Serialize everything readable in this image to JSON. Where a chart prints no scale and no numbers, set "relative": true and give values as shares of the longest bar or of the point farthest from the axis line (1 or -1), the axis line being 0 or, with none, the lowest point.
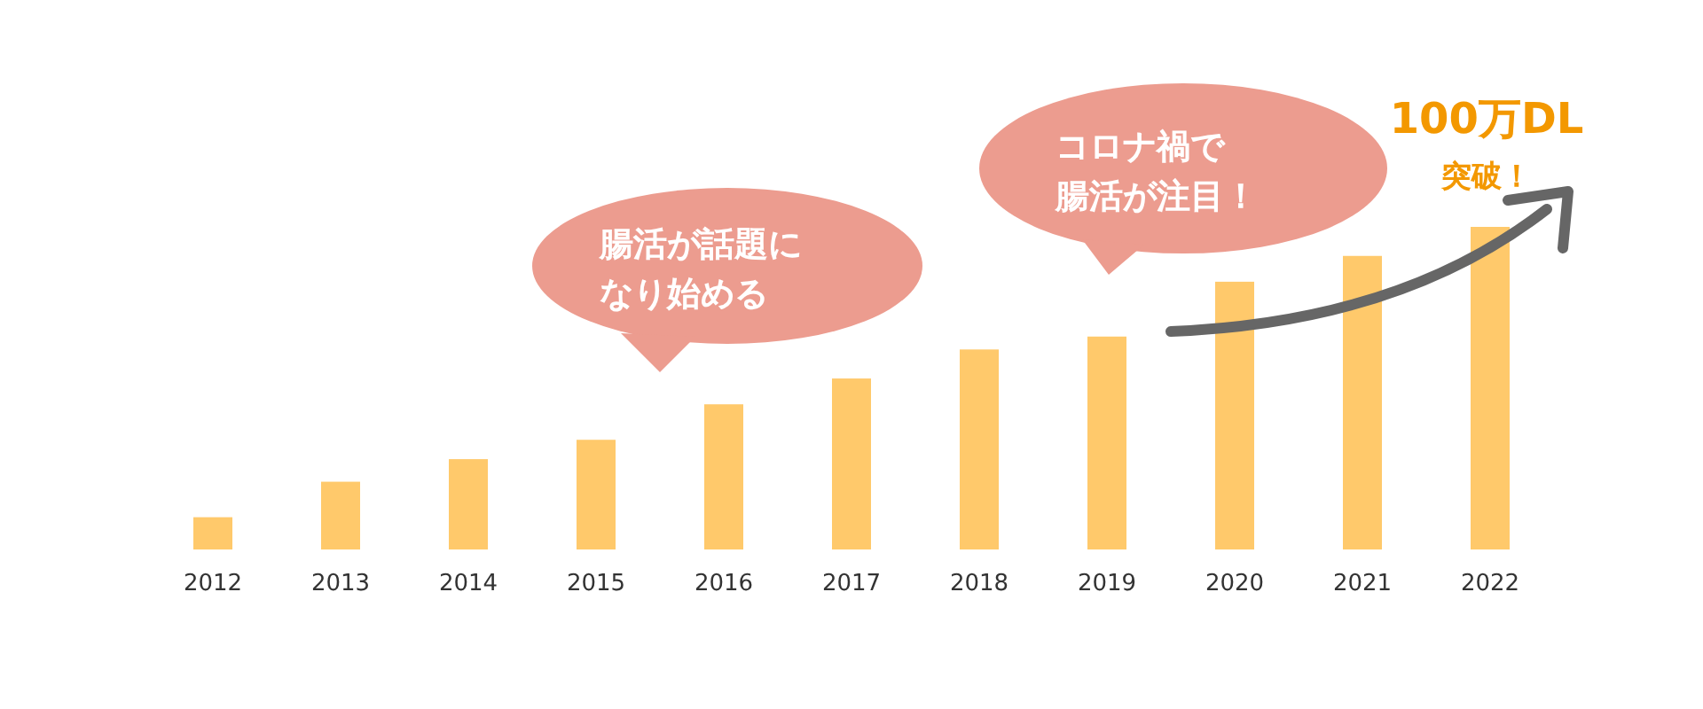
{
  "chart_data": {
    "type": "bar",
    "relative": true,
    "categories": [
      "2012",
      "2013",
      "2014",
      "2015",
      "2016",
      "2017",
      "2018",
      "2019",
      "2020",
      "2021",
      "2022"
    ],
    "values": [
      0.1,
      0.21,
      0.28,
      0.34,
      0.45,
      0.53,
      0.62,
      0.66,
      0.83,
      0.91,
      1
    ],
    "color": "#ffc96b",
    "annotations": [
      "腸活が話題になり始める",
      "コロナ禍で腸活が注目！",
      "100万DL突破！"
    ]
  }
}
